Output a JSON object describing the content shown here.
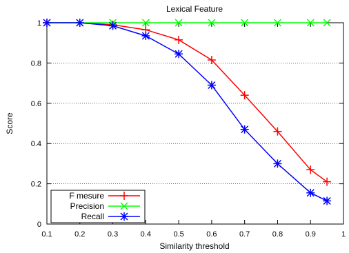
{
  "chart_data": {
    "type": "line",
    "title": "Lexical Feature",
    "xlabel": "Similarity threshold",
    "ylabel": "Score",
    "xlim": [
      0.1,
      1
    ],
    "ylim": [
      0,
      1
    ],
    "x_ticks": [
      "0.1",
      "0.2",
      "0.3",
      "0.4",
      "0.5",
      "0.6",
      "0.7",
      "0.8",
      "0.9",
      "1"
    ],
    "y_ticks": [
      "0",
      "0.2",
      "0.4",
      "0.6",
      "0.8",
      "1"
    ],
    "grid": "horizontal dotted",
    "legend_position": "bottom-left",
    "x": [
      0.1,
      0.2,
      0.3,
      0.4,
      0.5,
      0.6,
      0.7,
      0.8,
      0.9,
      0.95
    ],
    "series": [
      {
        "name": "F mesure",
        "color": "#ff0000",
        "marker": "plus",
        "values": [
          1.0,
          1.0,
          0.99,
          0.965,
          0.915,
          0.815,
          0.64,
          0.46,
          0.27,
          0.21
        ]
      },
      {
        "name": "Precision",
        "color": "#00ff00",
        "marker": "cross",
        "values": [
          1.0,
          1.0,
          1.0,
          1.0,
          1.0,
          1.0,
          1.0,
          1.0,
          1.0,
          1.0
        ]
      },
      {
        "name": "Recall",
        "color": "#0000ff",
        "marker": "star",
        "values": [
          1.0,
          1.0,
          0.985,
          0.935,
          0.845,
          0.69,
          0.47,
          0.3,
          0.155,
          0.115
        ]
      }
    ]
  }
}
